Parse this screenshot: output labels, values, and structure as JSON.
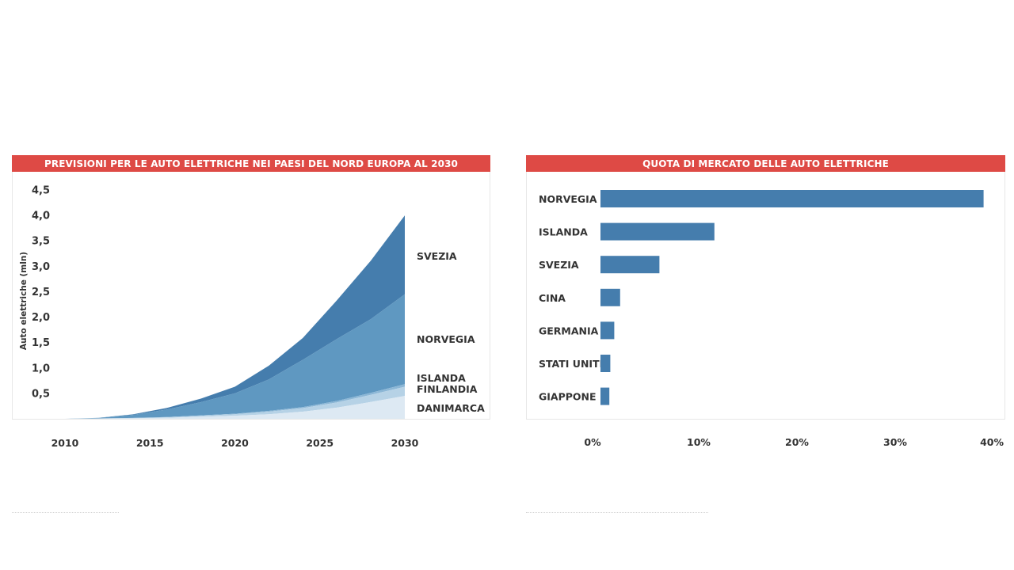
{
  "colors": {
    "banner": "#de4a45",
    "bar": "#457dad",
    "svezia": "#457dad",
    "norvegia": "#5f98c1",
    "islanda": "#8cb7d6",
    "finlandia": "#b6d2e6",
    "danimarca": "#dde9f3",
    "text": "#333333"
  },
  "chart_data": [
    {
      "type": "area",
      "stacked": true,
      "title": "PREVISIONI PER LE AUTO ELETTRICHE NEI PAESI DEL NORD EUROPA AL 2030",
      "ylabel": "Auto elettriche (mln)",
      "xlabel": "",
      "ylim": [
        0,
        4.5
      ],
      "xlim": [
        2010,
        2030
      ],
      "x_ticks": [
        "2010",
        "2015",
        "2020",
        "2025",
        "2030"
      ],
      "y_ticks": [
        "0,5",
        "1,0",
        "1,5",
        "2,0",
        "2,5",
        "3,0",
        "3,5",
        "4,0",
        "4,5"
      ],
      "grid": false,
      "x": [
        2010,
        2012,
        2014,
        2016,
        2018,
        2020,
        2022,
        2024,
        2026,
        2028,
        2030
      ],
      "series": [
        {
          "name": "DANIMARCA",
          "values": [
            0,
            0.005,
            0.01,
            0.02,
            0.04,
            0.06,
            0.09,
            0.14,
            0.22,
            0.33,
            0.45
          ]
        },
        {
          "name": "FINLANDIA",
          "values": [
            0,
            0.002,
            0.005,
            0.01,
            0.02,
            0.03,
            0.05,
            0.07,
            0.1,
            0.14,
            0.18
          ]
        },
        {
          "name": "ISLANDA",
          "values": [
            0,
            0.001,
            0.002,
            0.004,
            0.007,
            0.01,
            0.015,
            0.02,
            0.03,
            0.04,
            0.05
          ]
        },
        {
          "name": "NORVEGIA",
          "values": [
            0,
            0.01,
            0.06,
            0.15,
            0.26,
            0.4,
            0.62,
            0.93,
            1.22,
            1.45,
            1.77
          ]
        },
        {
          "name": "SVEZIA",
          "values": [
            0,
            0.002,
            0.01,
            0.03,
            0.07,
            0.13,
            0.27,
            0.43,
            0.76,
            1.15,
            1.55
          ]
        }
      ]
    },
    {
      "type": "bar",
      "orientation": "horizontal",
      "title": "QUOTA DI MERCATO DELLE AUTO ELETTRICHE",
      "xlim": [
        0,
        40
      ],
      "x_ticks": [
        "0%",
        "10%",
        "20%",
        "30%",
        "40%"
      ],
      "grid": false,
      "categories": [
        "NORVEGIA",
        "ISLANDA",
        "SVEZIA",
        "CINA",
        "GERMANIA",
        "STATI UNITI",
        "GIAPPONE"
      ],
      "values": [
        39,
        11.6,
        6,
        2,
        1.4,
        1,
        0.9
      ]
    }
  ]
}
